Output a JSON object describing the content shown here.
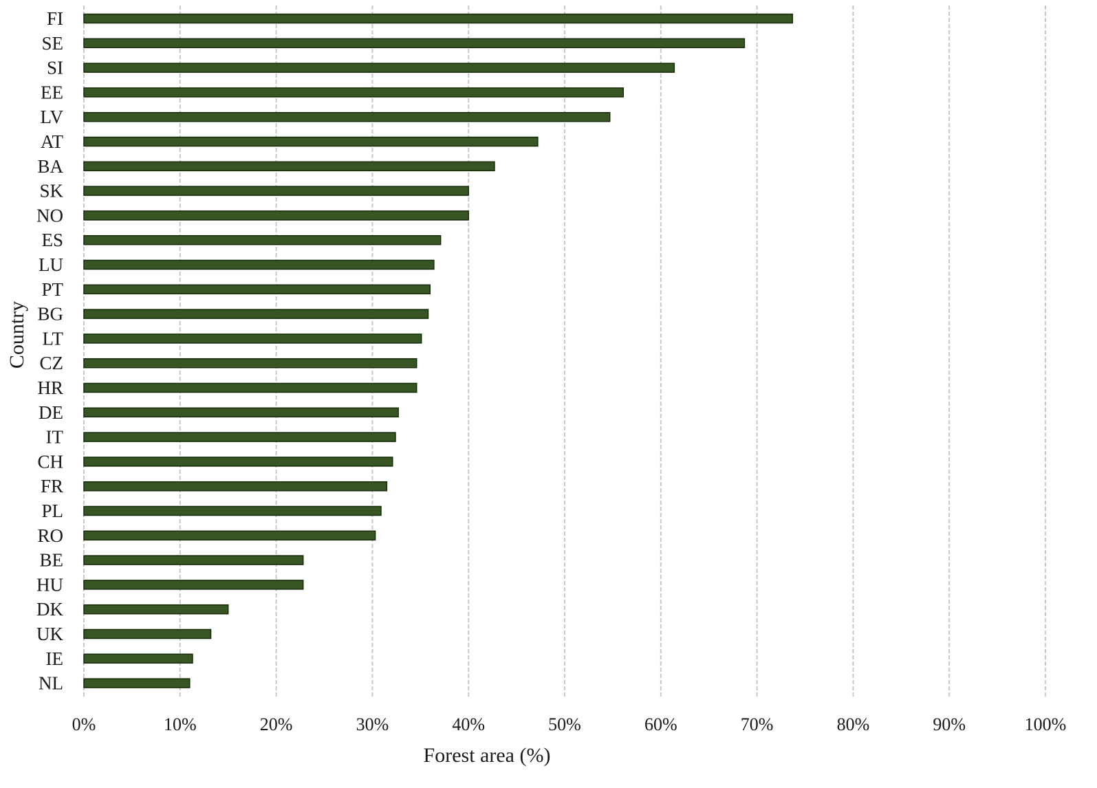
{
  "chart_data": {
    "type": "bar",
    "orientation": "horizontal",
    "title": "",
    "xlabel": "Forest area (%)",
    "ylabel": "Country",
    "xlim": [
      0,
      100
    ],
    "x_ticks": [
      "0%",
      "10%",
      "20%",
      "30%",
      "40%",
      "50%",
      "60%",
      "70%",
      "80%",
      "90%",
      "100%"
    ],
    "grid": "vertical dashed",
    "legend": "none",
    "bar_color": "#375623",
    "categories": [
      "FI",
      "SE",
      "SI",
      "EE",
      "LV",
      "AT",
      "BA",
      "SK",
      "NO",
      "ES",
      "LU",
      "PT",
      "BG",
      "LT",
      "CZ",
      "HR",
      "DE",
      "IT",
      "CH",
      "FR",
      "PL",
      "RO",
      "BE",
      "HU",
      "DK",
      "UK",
      "IE",
      "NL"
    ],
    "values": [
      73.7,
      68.7,
      61.4,
      56.1,
      54.7,
      47.2,
      42.7,
      40.0,
      40.0,
      37.1,
      36.4,
      36.0,
      35.8,
      35.1,
      34.6,
      34.6,
      32.7,
      32.4,
      32.1,
      31.5,
      30.9,
      30.3,
      22.8,
      22.8,
      15.0,
      13.2,
      11.3,
      11.0
    ]
  }
}
